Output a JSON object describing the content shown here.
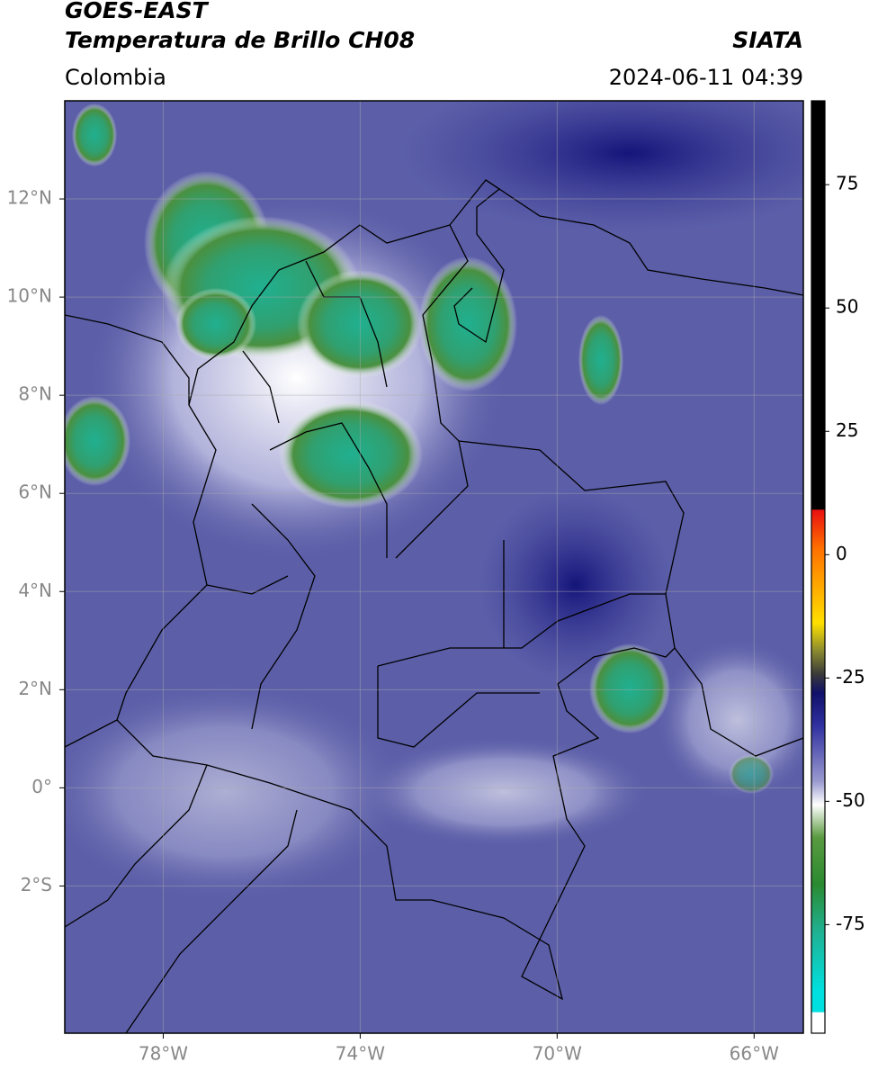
{
  "header": {
    "title": "GOES-EAST",
    "subtitle": "Temperatura de Brillo CH08",
    "region": "Colombia",
    "source": "SIATA",
    "datetime": "2024-06-11 04:39"
  },
  "map": {
    "xlim": [
      -80,
      -65
    ],
    "ylim": [
      -5,
      14
    ],
    "xticks": [
      {
        "value": -78,
        "label": "78°W"
      },
      {
        "value": -74,
        "label": "74°W"
      },
      {
        "value": -70,
        "label": "70°W"
      },
      {
        "value": -66,
        "label": "66°W"
      }
    ],
    "yticks": [
      {
        "value": 12,
        "label": "12°N"
      },
      {
        "value": 10,
        "label": "10°N"
      },
      {
        "value": 8,
        "label": "8°N"
      },
      {
        "value": 6,
        "label": "6°N"
      },
      {
        "value": 4,
        "label": "4°N"
      },
      {
        "value": 2,
        "label": "2°N"
      },
      {
        "value": 0,
        "label": "0°"
      },
      {
        "value": -2,
        "label": "2°S"
      }
    ],
    "grid": true
  },
  "colorbar": {
    "lim": [
      -97,
      92
    ],
    "ticks": [
      75,
      50,
      25,
      0,
      -25,
      -50,
      -75
    ]
  }
}
